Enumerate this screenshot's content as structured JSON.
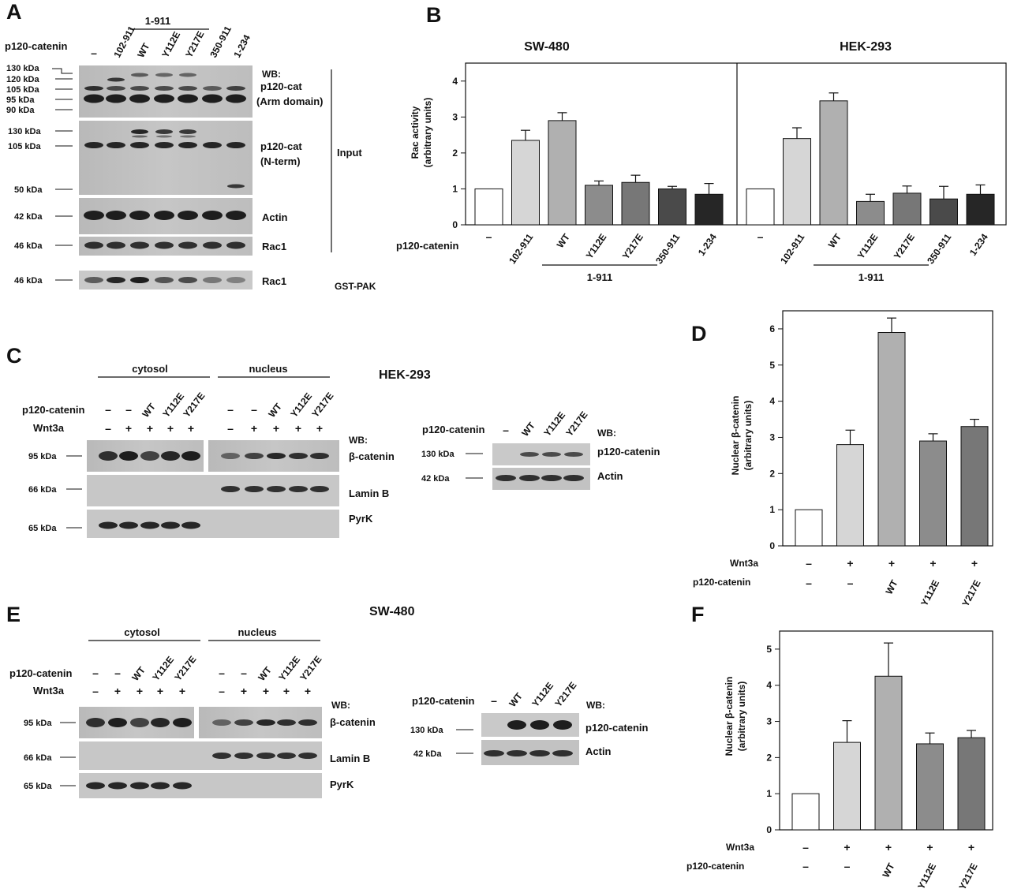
{
  "panel_letters": {
    "A": "A",
    "B": "B",
    "C": "C",
    "D": "D",
    "E": "E",
    "F": "F"
  },
  "panel_a": {
    "construct_row_label": "p120-catenin",
    "constructs": [
      "–",
      "102-911",
      "WT",
      "Y112E",
      "Y217E",
      "350-911",
      "1-234"
    ],
    "group_label": "1-911",
    "wb_label": "WB:",
    "input_label": "Input",
    "gst_pak_label": "GST-PAK",
    "blots": [
      {
        "name": "p120-cat (Arm domain)",
        "label1": "p120-cat",
        "label2": "(Arm domain)",
        "markers": [
          "130 kDa",
          "120 kDa",
          "105 kDa",
          "95 kDa",
          "90 kDa"
        ]
      },
      {
        "name": "p120-cat (N-term)",
        "label1": "p120-cat",
        "label2": "(N-term)",
        "markers": [
          "130 kDa",
          "105 kDa",
          "50 kDa"
        ]
      },
      {
        "name": "Actin",
        "label1": "Actin",
        "markers": [
          "42 kDa"
        ]
      },
      {
        "name": "Rac1 input",
        "label1": "Rac1",
        "markers": [
          "46 kDa"
        ]
      },
      {
        "name": "Rac1 pulldown",
        "label1": "Rac1",
        "markers": [
          "46 kDa"
        ]
      }
    ]
  },
  "panel_c": {
    "cell_line": "HEK-293",
    "cytosol_label": "cytosol",
    "nucleus_label": "nucleus",
    "p120_row_label": "p120-catenin",
    "wnt_row_label": "Wnt3a",
    "p120_values": [
      "–",
      "–",
      "WT",
      "Y112E",
      "Y217E",
      "–",
      "–",
      "WT",
      "Y112E",
      "Y217E"
    ],
    "wnt_values": [
      "–",
      "+",
      "+",
      "+",
      "+",
      "–",
      "+",
      "+",
      "+",
      "+"
    ],
    "wb_label": "WB:",
    "blots": [
      {
        "marker": "95 kDa",
        "label": "β-catenin"
      },
      {
        "marker": "66 kDa",
        "label": "Lamin B"
      },
      {
        "marker": "65 kDa",
        "label": "PyrK"
      }
    ],
    "inset": {
      "row_label": "p120-catenin",
      "values": [
        "–",
        "WT",
        "Y112E",
        "Y217E"
      ],
      "wb_label": "WB:",
      "blots": [
        {
          "marker": "130 kDa",
          "label": "p120-catenin"
        },
        {
          "marker": "42 kDa",
          "label": "Actin"
        }
      ]
    }
  },
  "panel_e": {
    "cell_line": "SW-480",
    "cytosol_label": "cytosol",
    "nucleus_label": "nucleus",
    "p120_row_label": "p120-catenin",
    "wnt_row_label": "Wnt3a",
    "p120_values": [
      "–",
      "–",
      "WT",
      "Y112E",
      "Y217E",
      "–",
      "–",
      "WT",
      "Y112E",
      "Y217E"
    ],
    "wnt_values": [
      "–",
      "+",
      "+",
      "+",
      "+",
      "–",
      "+",
      "+",
      "+",
      "+"
    ],
    "wb_label": "WB:",
    "blots": [
      {
        "marker": "95 kDa",
        "label": "β-catenin"
      },
      {
        "marker": "66 kDa",
        "label": "Lamin B"
      },
      {
        "marker": "65 kDa",
        "label": "PyrK"
      }
    ],
    "inset": {
      "row_label": "p120-catenin",
      "values": [
        "–",
        "WT",
        "Y112E",
        "Y217E"
      ],
      "wb_label": "WB:",
      "blots": [
        {
          "marker": "130 kDa",
          "label": "p120-catenin"
        },
        {
          "marker": "42 kDa",
          "label": "Actin"
        }
      ]
    }
  },
  "chart_data": [
    {
      "id": "B",
      "type": "bar",
      "ylabel": "Rac activity",
      "ylabel2": "(arbitrary units)",
      "ylim": [
        0,
        4.5
      ],
      "yticks": [
        0,
        1,
        2,
        3,
        4
      ],
      "xrow_label": "p120-catenin",
      "group_label": "1-911",
      "categories": [
        "–",
        "102-911",
        "WT",
        "Y112E",
        "Y217E",
        "350-911",
        "1-234"
      ],
      "colors": [
        "#ffffff",
        "#d6d6d6",
        "#b0b0b0",
        "#8c8c8c",
        "#777777",
        "#4a4a4a",
        "#262626"
      ],
      "series": [
        {
          "name": "SW-480",
          "values": [
            1.0,
            2.35,
            2.9,
            1.1,
            1.18,
            1.0,
            0.85
          ],
          "errors": [
            0,
            0.28,
            0.22,
            0.12,
            0.2,
            0.07,
            0.3
          ]
        },
        {
          "name": "HEK-293",
          "values": [
            1.0,
            2.4,
            3.45,
            0.65,
            0.88,
            0.72,
            0.85
          ],
          "errors": [
            0,
            0.3,
            0.22,
            0.2,
            0.2,
            0.35,
            0.26
          ]
        }
      ],
      "grid": false
    },
    {
      "id": "D",
      "type": "bar",
      "ylabel": "Nuclear  β-catenin",
      "ylabel2": "(arbitrary units)",
      "ylim": [
        0,
        6.5
      ],
      "yticks": [
        0,
        1,
        2,
        3,
        4,
        5,
        6
      ],
      "row1_label": "Wnt3a",
      "row2_label": "p120-catenin",
      "row1": [
        "–",
        "+",
        "+",
        "+",
        "+"
      ],
      "row2": [
        "–",
        "–",
        "WT",
        "Y112E",
        "Y217E"
      ],
      "colors": [
        "#ffffff",
        "#d6d6d6",
        "#b0b0b0",
        "#8c8c8c",
        "#777777"
      ],
      "values": [
        1.0,
        2.8,
        5.9,
        2.9,
        3.3
      ],
      "errors": [
        0,
        0.4,
        0.4,
        0.2,
        0.2
      ],
      "grid": false
    },
    {
      "id": "F",
      "type": "bar",
      "ylabel": "Nuclear  β-catenin",
      "ylabel2": "(arbitrary units)",
      "ylim": [
        0,
        5.5
      ],
      "yticks": [
        0,
        1,
        2,
        3,
        4,
        5
      ],
      "row1_label": "Wnt3a",
      "row2_label": "p120-catenin",
      "row1": [
        "–",
        "+",
        "+",
        "+",
        "+"
      ],
      "row2": [
        "–",
        "–",
        "WT",
        "Y112E",
        "Y217E"
      ],
      "colors": [
        "#ffffff",
        "#d6d6d6",
        "#b0b0b0",
        "#8c8c8c",
        "#777777"
      ],
      "values": [
        1.0,
        2.42,
        4.25,
        2.38,
        2.55
      ],
      "errors": [
        0,
        0.6,
        0.92,
        0.3,
        0.2
      ],
      "grid": false
    }
  ]
}
